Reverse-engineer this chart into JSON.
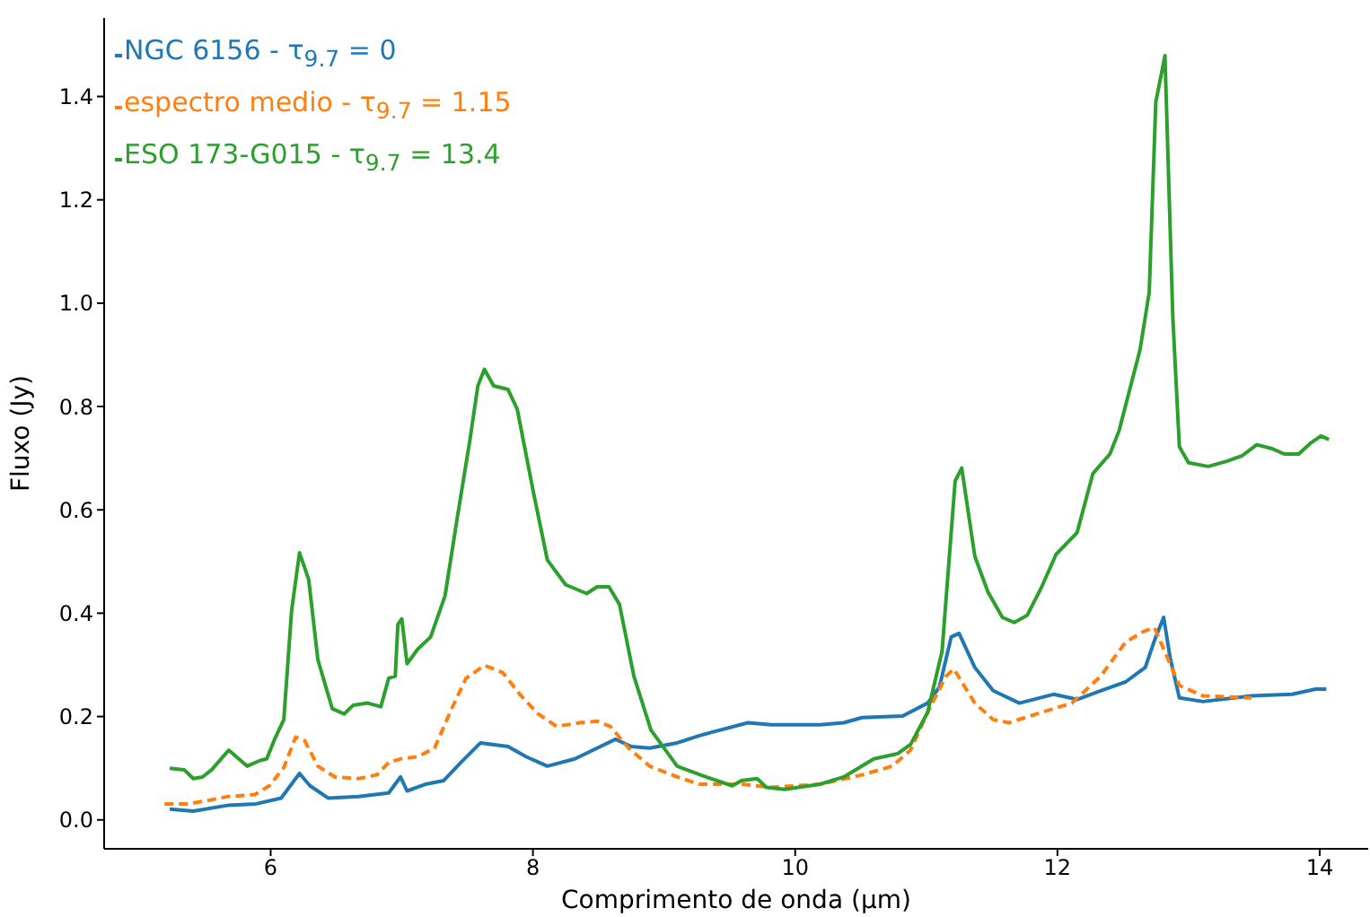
{
  "chart_data": {
    "type": "line",
    "xlabel": "Comprimento de onda (μm)",
    "ylabel": "Fluxo (Jy)",
    "xlim": [
      4.73,
      14.37
    ],
    "ylim": [
      -0.056,
      1.552
    ],
    "xticks": [
      6,
      8,
      10,
      12,
      14
    ],
    "yticks": [
      {
        "value": 0,
        "label": "0.0"
      },
      0.2,
      0.4,
      0.6,
      0.8,
      {
        "value": 1,
        "label": "1.0"
      },
      1.2,
      1.4
    ],
    "grid": false,
    "legend": "top left",
    "marker": "none",
    "series": [
      {
        "name": "NGC 6156 - τ$_{9.7}$ = 0",
        "color": "#1f77b4",
        "line_style": "solid",
        "x": [
          5.23,
          5.41,
          5.67,
          5.89,
          6.08,
          6.22,
          6.3,
          6.44,
          6.67,
          6.9,
          6.99,
          7.04,
          7.18,
          7.32,
          7.45,
          7.6,
          7.81,
          7.95,
          8.11,
          8.32,
          8.49,
          8.63,
          8.75,
          8.89,
          9.1,
          9.27,
          9.37,
          9.64,
          9.82,
          10.19,
          10.37,
          10.51,
          10.82,
          11.01,
          11.1,
          11.19,
          11.25,
          11.37,
          11.51,
          11.71,
          11.97,
          12.15,
          12.33,
          12.52,
          12.67,
          12.74,
          12.81,
          12.86,
          12.93,
          13.11,
          13.48,
          13.79,
          13.97,
          14.05
        ],
        "values": [
          0.021,
          0.017,
          0.028,
          0.031,
          0.042,
          0.09,
          0.066,
          0.042,
          0.045,
          0.052,
          0.083,
          0.056,
          0.069,
          0.076,
          0.111,
          0.149,
          0.142,
          0.122,
          0.104,
          0.118,
          0.139,
          0.156,
          0.142,
          0.139,
          0.149,
          0.163,
          0.17,
          0.188,
          0.184,
          0.184,
          0.188,
          0.198,
          0.201,
          0.226,
          0.257,
          0.354,
          0.361,
          0.295,
          0.25,
          0.226,
          0.243,
          0.233,
          0.25,
          0.267,
          0.295,
          0.347,
          0.392,
          0.313,
          0.236,
          0.229,
          0.24,
          0.243,
          0.253,
          0.253
        ]
      },
      {
        "name": "espectro medio - τ$_{9.7}$ = 1.15",
        "color": "#ff7f0e",
        "line_style": "dashed",
        "x": [
          5.19,
          5.37,
          5.53,
          5.67,
          5.88,
          5.99,
          6.1,
          6.19,
          6.26,
          6.36,
          6.49,
          6.67,
          6.81,
          6.9,
          6.99,
          7.12,
          7.25,
          7.38,
          7.49,
          7.63,
          7.77,
          7.9,
          8.04,
          8.18,
          8.36,
          8.49,
          8.59,
          8.73,
          8.89,
          9.1,
          9.27,
          9.59,
          9.82,
          10.19,
          10.51,
          10.74,
          10.88,
          11.01,
          11.15,
          11.21,
          11.37,
          11.51,
          11.63,
          11.88,
          12.11,
          12.33,
          12.52,
          12.66,
          12.74,
          12.84,
          12.93,
          13.11,
          13.48
        ],
        "values": [
          0.031,
          0.031,
          0.038,
          0.045,
          0.049,
          0.066,
          0.101,
          0.16,
          0.153,
          0.104,
          0.083,
          0.08,
          0.087,
          0.111,
          0.118,
          0.122,
          0.139,
          0.215,
          0.274,
          0.299,
          0.285,
          0.243,
          0.205,
          0.181,
          0.188,
          0.191,
          0.181,
          0.139,
          0.104,
          0.083,
          0.069,
          0.069,
          0.063,
          0.069,
          0.087,
          0.104,
          0.135,
          0.208,
          0.278,
          0.292,
          0.226,
          0.194,
          0.188,
          0.208,
          0.226,
          0.278,
          0.344,
          0.365,
          0.372,
          0.313,
          0.26,
          0.24,
          0.236
        ]
      },
      {
        "name": "ESO 173-G015 - τ$_{9.7}$ = 13.4",
        "color": "#2ca02c",
        "line_style": "solid",
        "x": [
          5.23,
          5.34,
          5.41,
          5.48,
          5.55,
          5.68,
          5.82,
          5.92,
          5.97,
          6.03,
          6.1,
          6.16,
          6.22,
          6.29,
          6.36,
          6.47,
          6.56,
          6.63,
          6.74,
          6.84,
          6.9,
          6.95,
          6.97,
          7.0,
          7.04,
          7.12,
          7.22,
          7.33,
          7.42,
          7.52,
          7.58,
          7.63,
          7.7,
          7.81,
          7.88,
          8.0,
          8.11,
          8.25,
          8.41,
          8.49,
          8.58,
          8.66,
          8.77,
          8.9,
          9.1,
          9.32,
          9.52,
          9.59,
          9.71,
          9.78,
          9.92,
          10.19,
          10.37,
          10.6,
          10.78,
          10.88,
          11.01,
          11.12,
          11.22,
          11.27,
          11.37,
          11.47,
          11.58,
          11.67,
          11.77,
          11.88,
          11.99,
          12.15,
          12.27,
          12.4,
          12.47,
          12.63,
          12.7,
          12.75,
          12.82,
          12.88,
          12.93,
          13.0,
          13.15,
          13.29,
          13.41,
          13.52,
          13.63,
          13.73,
          13.84,
          13.93,
          14.01,
          14.07
        ],
        "values": [
          0.1,
          0.097,
          0.08,
          0.083,
          0.097,
          0.135,
          0.104,
          0.115,
          0.118,
          0.156,
          0.194,
          0.406,
          0.517,
          0.465,
          0.31,
          0.215,
          0.205,
          0.222,
          0.226,
          0.219,
          0.274,
          0.278,
          0.378,
          0.389,
          0.302,
          0.33,
          0.354,
          0.434,
          0.58,
          0.736,
          0.84,
          0.872,
          0.84,
          0.833,
          0.795,
          0.639,
          0.503,
          0.455,
          0.438,
          0.451,
          0.451,
          0.417,
          0.278,
          0.174,
          0.104,
          0.083,
          0.066,
          0.076,
          0.08,
          0.063,
          0.059,
          0.069,
          0.083,
          0.118,
          0.128,
          0.146,
          0.208,
          0.326,
          0.656,
          0.681,
          0.51,
          0.441,
          0.392,
          0.382,
          0.396,
          0.451,
          0.514,
          0.556,
          0.67,
          0.708,
          0.753,
          0.91,
          1.021,
          1.389,
          1.479,
          0.972,
          0.722,
          0.691,
          0.684,
          0.694,
          0.705,
          0.726,
          0.719,
          0.708,
          0.708,
          0.729,
          0.743,
          0.736
        ]
      }
    ]
  }
}
